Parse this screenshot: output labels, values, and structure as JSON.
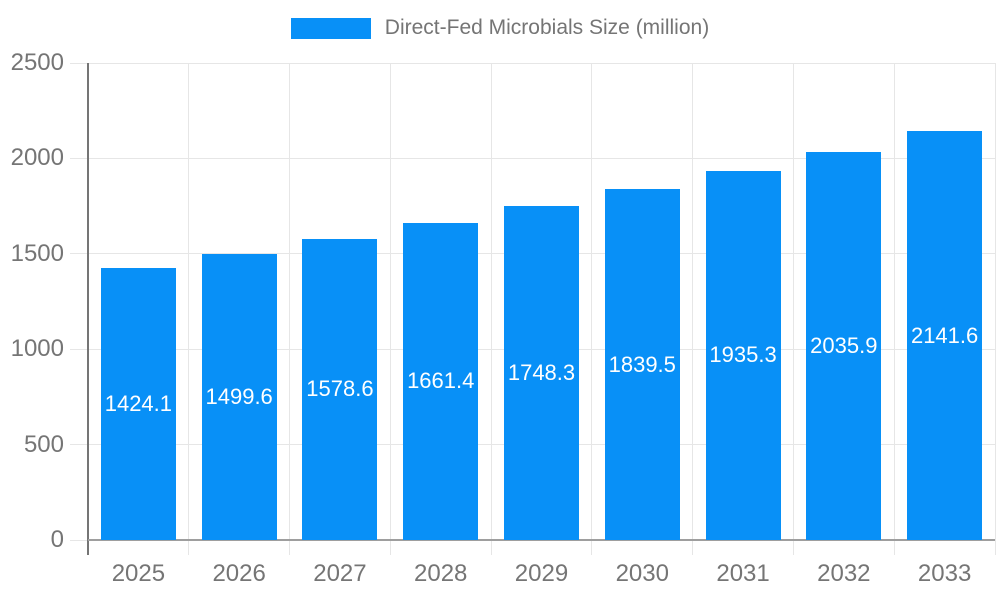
{
  "legend": {
    "label": "Direct-Fed Microbials Size (million)"
  },
  "colors": {
    "bar": "#0890f7",
    "grid": "#e6e6e6",
    "axis_line": "#757575",
    "baseline": "#9e9e9e",
    "axis_text": "#757575",
    "value_text": "#ffffff"
  },
  "chart_data": {
    "type": "bar",
    "title": "Direct-Fed Microbials Size (million)",
    "categories": [
      "2025",
      "2026",
      "2027",
      "2028",
      "2029",
      "2030",
      "2031",
      "2032",
      "2033"
    ],
    "series": [
      {
        "name": "Direct-Fed Microbials Size (million)",
        "values": [
          1424.1,
          1499.6,
          1578.6,
          1661.4,
          1748.3,
          1839.5,
          1935.3,
          2035.9,
          2141.6
        ]
      }
    ],
    "value_labels": [
      "1424.1",
      "1499.6",
      "1578.6",
      "1661.4",
      "1748.3",
      "1839.5",
      "1935.3",
      "2035.9",
      "2141.6"
    ],
    "xlabel": "",
    "ylabel": "",
    "ylim": [
      0,
      2500
    ],
    "yticks": [
      0,
      500,
      1000,
      1500,
      2000,
      2500
    ],
    "grid": true,
    "legend_position": "top-center",
    "value_label_position": "inside-center"
  }
}
